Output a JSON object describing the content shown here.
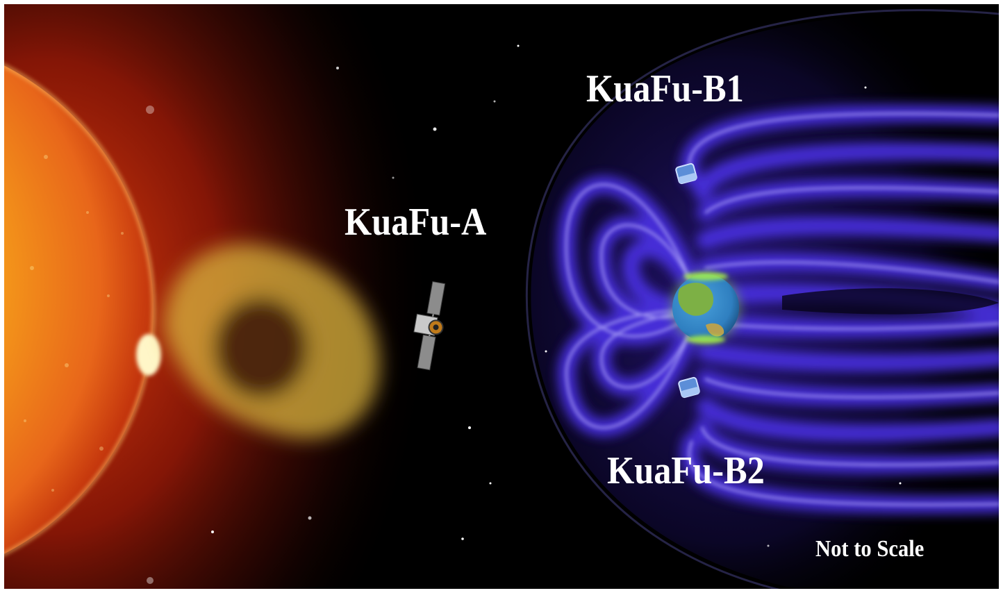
{
  "labels": {
    "kuafu_a": "KuaFu-A",
    "kuafu_b1": "KuaFu-B1",
    "kuafu_b2": "KuaFu-B2",
    "scale_note": "Not to Scale"
  },
  "objects": {
    "sun": "sun",
    "cme": "coronal-mass-ejection",
    "satellite_a": "satellite-icon",
    "satellite_b1": "satellite-icon",
    "satellite_b2": "satellite-icon",
    "earth": "earth-globe",
    "magnetosphere": "magnetosphere-field-lines"
  },
  "colors": {
    "space": "#000000",
    "sun_core": "#f7a21b",
    "sun_edge": "#d2400e",
    "cme": "#d9b43c",
    "field": "#5a3df0",
    "field_glow": "#c8c2ff",
    "earth_ocean": "#2f7fc0",
    "earth_land": "#7cc443",
    "text": "#ffffff"
  }
}
